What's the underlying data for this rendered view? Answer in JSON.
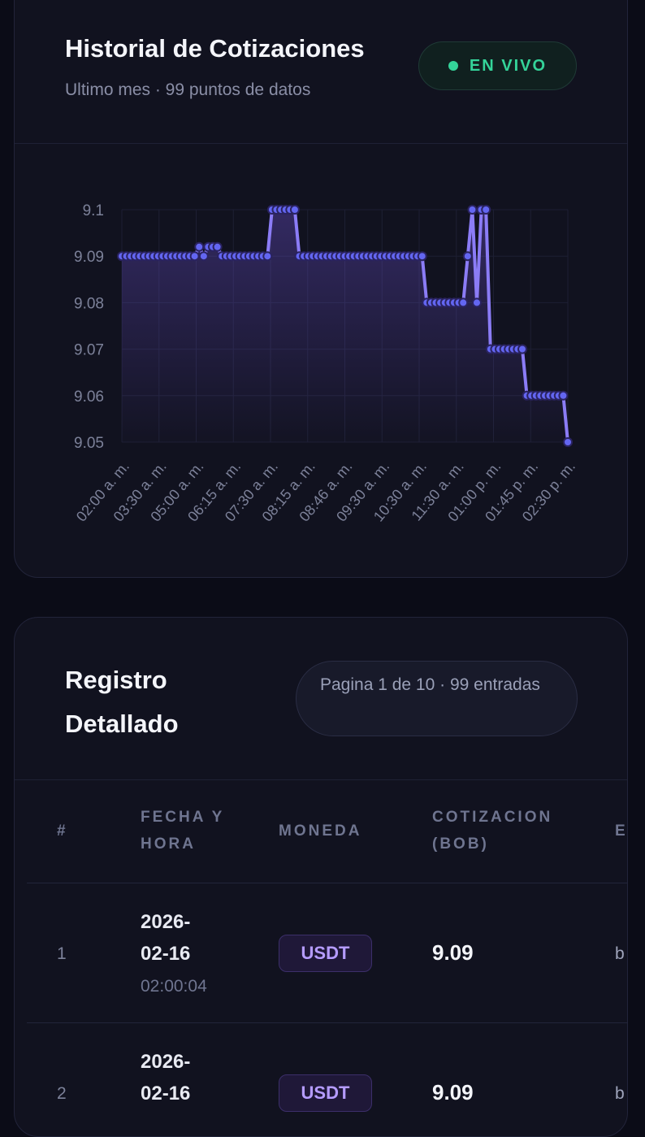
{
  "history": {
    "title": "Historial de Cotizaciones",
    "subtitle": "Ultimo mes · 99 puntos de datos",
    "live_label": "EN VIVO",
    "colors": {
      "live": "#34d399",
      "line": "#8b7cf6",
      "point": "#6366f1"
    }
  },
  "chart_data": {
    "type": "line",
    "title": "",
    "xlabel": "",
    "ylabel": "",
    "ylim": [
      9.05,
      9.1
    ],
    "y_ticks": [
      "9.1",
      "9.09",
      "9.08",
      "9.07",
      "9.06",
      "9.05"
    ],
    "x_ticks": [
      "02:00 a. m.",
      "03:30 a. m.",
      "05:00 a. m.",
      "06:15 a. m.",
      "07:30 a. m.",
      "08:15 a. m.",
      "08:46 a. m.",
      "09:30 a. m.",
      "10:30 a. m.",
      "11:30 a. m.",
      "01:00 p. m.",
      "01:45 p. m.",
      "02:30 p. m."
    ],
    "grid": true,
    "series": [
      {
        "values": [
          9.09,
          9.09,
          9.09,
          9.09,
          9.09,
          9.09,
          9.09,
          9.09,
          9.09,
          9.09,
          9.09,
          9.09,
          9.09,
          9.09,
          9.09,
          9.09,
          9.09,
          9.092,
          9.09,
          9.092,
          9.092,
          9.092,
          9.09,
          9.09,
          9.09,
          9.09,
          9.09,
          9.09,
          9.09,
          9.09,
          9.09,
          9.09,
          9.09,
          9.1,
          9.1,
          9.1,
          9.1,
          9.1,
          9.1,
          9.09,
          9.09,
          9.09,
          9.09,
          9.09,
          9.09,
          9.09,
          9.09,
          9.09,
          9.09,
          9.09,
          9.09,
          9.09,
          9.09,
          9.09,
          9.09,
          9.09,
          9.09,
          9.09,
          9.09,
          9.09,
          9.09,
          9.09,
          9.09,
          9.09,
          9.09,
          9.09,
          9.09,
          9.08,
          9.08,
          9.08,
          9.08,
          9.08,
          9.08,
          9.08,
          9.08,
          9.08,
          9.09,
          9.1,
          9.08,
          9.1,
          9.1,
          9.07,
          9.07,
          9.07,
          9.07,
          9.07,
          9.07,
          9.07,
          9.07,
          9.06,
          9.06,
          9.06,
          9.06,
          9.06,
          9.06,
          9.06,
          9.06,
          9.06,
          9.05
        ]
      }
    ]
  },
  "log": {
    "title": "Registro Detallado",
    "page_info": "Pagina 1 de 10 · 99 entradas",
    "columns": [
      "#",
      "FECHA Y HORA",
      "MONEDA",
      "COTIZACION (BOB)",
      "E"
    ],
    "rows": [
      {
        "index": "1",
        "date": "2026-02-16",
        "time": "02:00:04",
        "coin": "USDT",
        "rate": "9.09",
        "source": "b"
      },
      {
        "index": "2",
        "date": "2026-02-16",
        "time": "",
        "coin": "USDT",
        "rate": "9.09",
        "source": "b"
      }
    ]
  }
}
